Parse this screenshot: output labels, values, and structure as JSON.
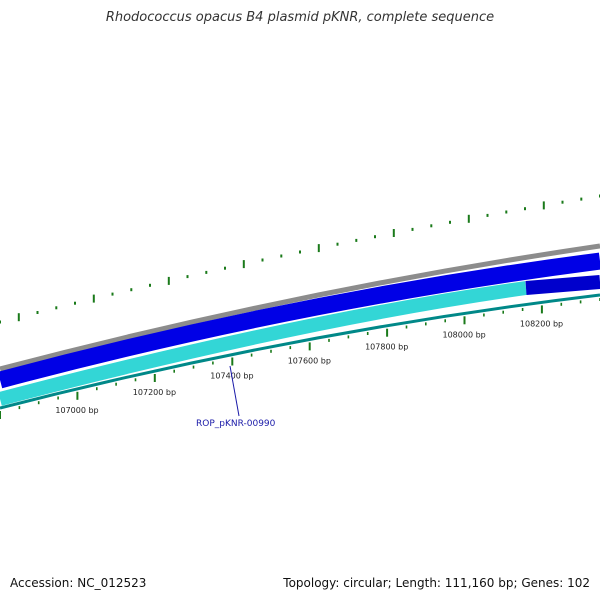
{
  "title": "Rhodococcus opacus B4 plasmid pKNR, complete sequence",
  "footer": {
    "accession": "Accession: NC_012523",
    "summary": "Topology: circular; Length: 111,160 bp; Genes: 102"
  },
  "colors": {
    "backbone": "#8c8c8c",
    "forward_genes": "#0000e6",
    "reverse_genes_light": "#33d6d6",
    "reverse_genes_dark": "#0000cc",
    "reverse_edge": "#008888",
    "gc_ticks": "#1a7a1a",
    "gene_label": "#1a1aa8"
  },
  "scale_labels": [
    {
      "bp": 107000,
      "text": "107000 bp"
    },
    {
      "bp": 107200,
      "text": "107200 bp"
    },
    {
      "bp": 107400,
      "text": "107400 bp"
    },
    {
      "bp": 107600,
      "text": "107600 bp"
    },
    {
      "bp": 107800,
      "text": "107800 bp"
    },
    {
      "bp": 108000,
      "text": "108000 bp"
    },
    {
      "bp": 108200,
      "text": "108200 bp"
    }
  ],
  "gene_label": {
    "name": "ROP_pKNR-00990"
  }
}
